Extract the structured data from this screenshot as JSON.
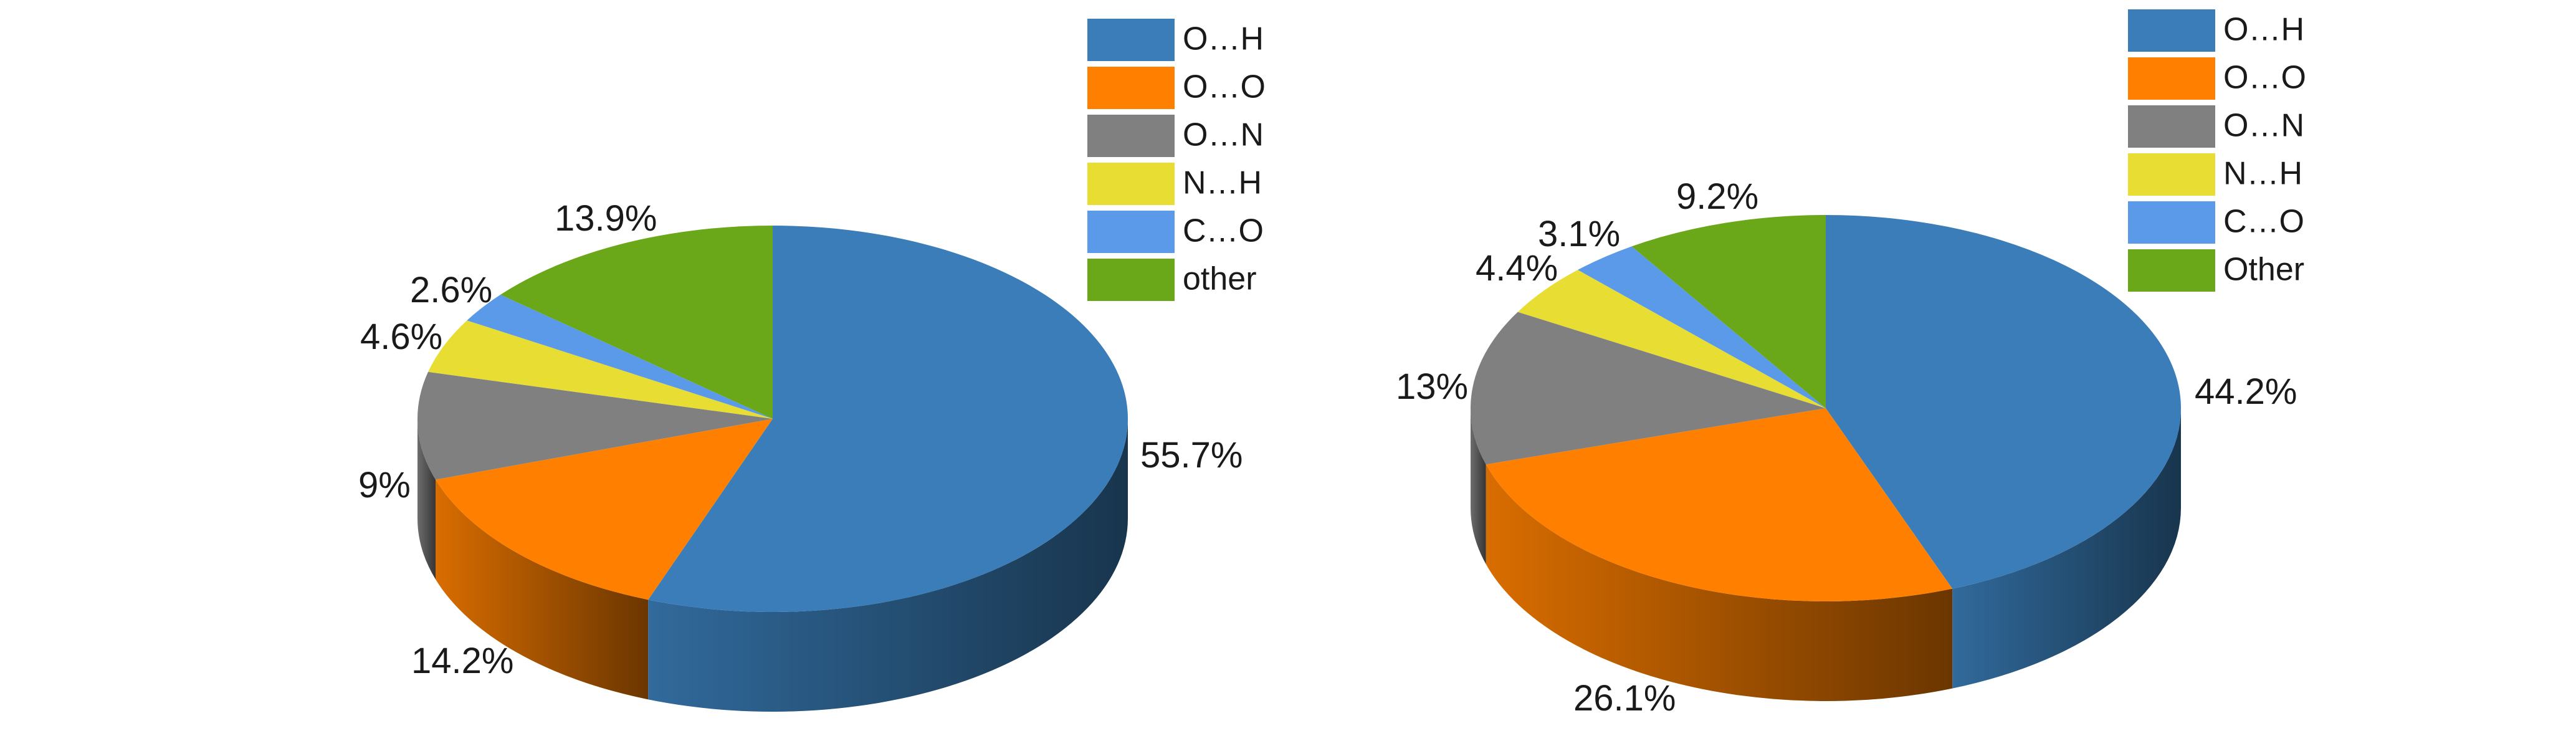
{
  "chart_data": [
    {
      "type": "pie",
      "title": "",
      "categories": [
        "O…H",
        "O…O",
        "O…N",
        "N…H",
        "C…O",
        "other"
      ],
      "values": [
        55.7,
        14.2,
        9,
        4.6,
        2.6,
        13.9
      ],
      "labels": [
        "55.7%",
        "14.2%",
        "9%",
        "4.6%",
        "2.6%",
        "13.9%"
      ],
      "colors": [
        "#3a7db8",
        "#ff8000",
        "#808080",
        "#e8dd33",
        "#5b9ae8",
        "#6aa819"
      ],
      "legend": [
        "O…H",
        "O…O",
        "O…N",
        "N…H",
        "C…O",
        "other"
      ],
      "legend_position": "top-right",
      "style": "3d"
    },
    {
      "type": "pie",
      "title": "",
      "categories": [
        "O…H",
        "O…O",
        "O…N",
        "N…H",
        "C…O",
        "Other"
      ],
      "values": [
        44.2,
        26.1,
        13,
        4.4,
        3.1,
        9.2
      ],
      "labels": [
        "44.2%",
        "26.1%",
        "13%",
        "4.4%",
        "3.1%",
        "9.2%"
      ],
      "colors": [
        "#3a7db8",
        "#ff8000",
        "#808080",
        "#e8dd33",
        "#5b9ae8",
        "#6aa819"
      ],
      "legend": [
        "O…H",
        "O…O",
        "O…N",
        "N…H",
        "C…O",
        "Other"
      ],
      "legend_position": "top-right",
      "style": "3d"
    }
  ]
}
